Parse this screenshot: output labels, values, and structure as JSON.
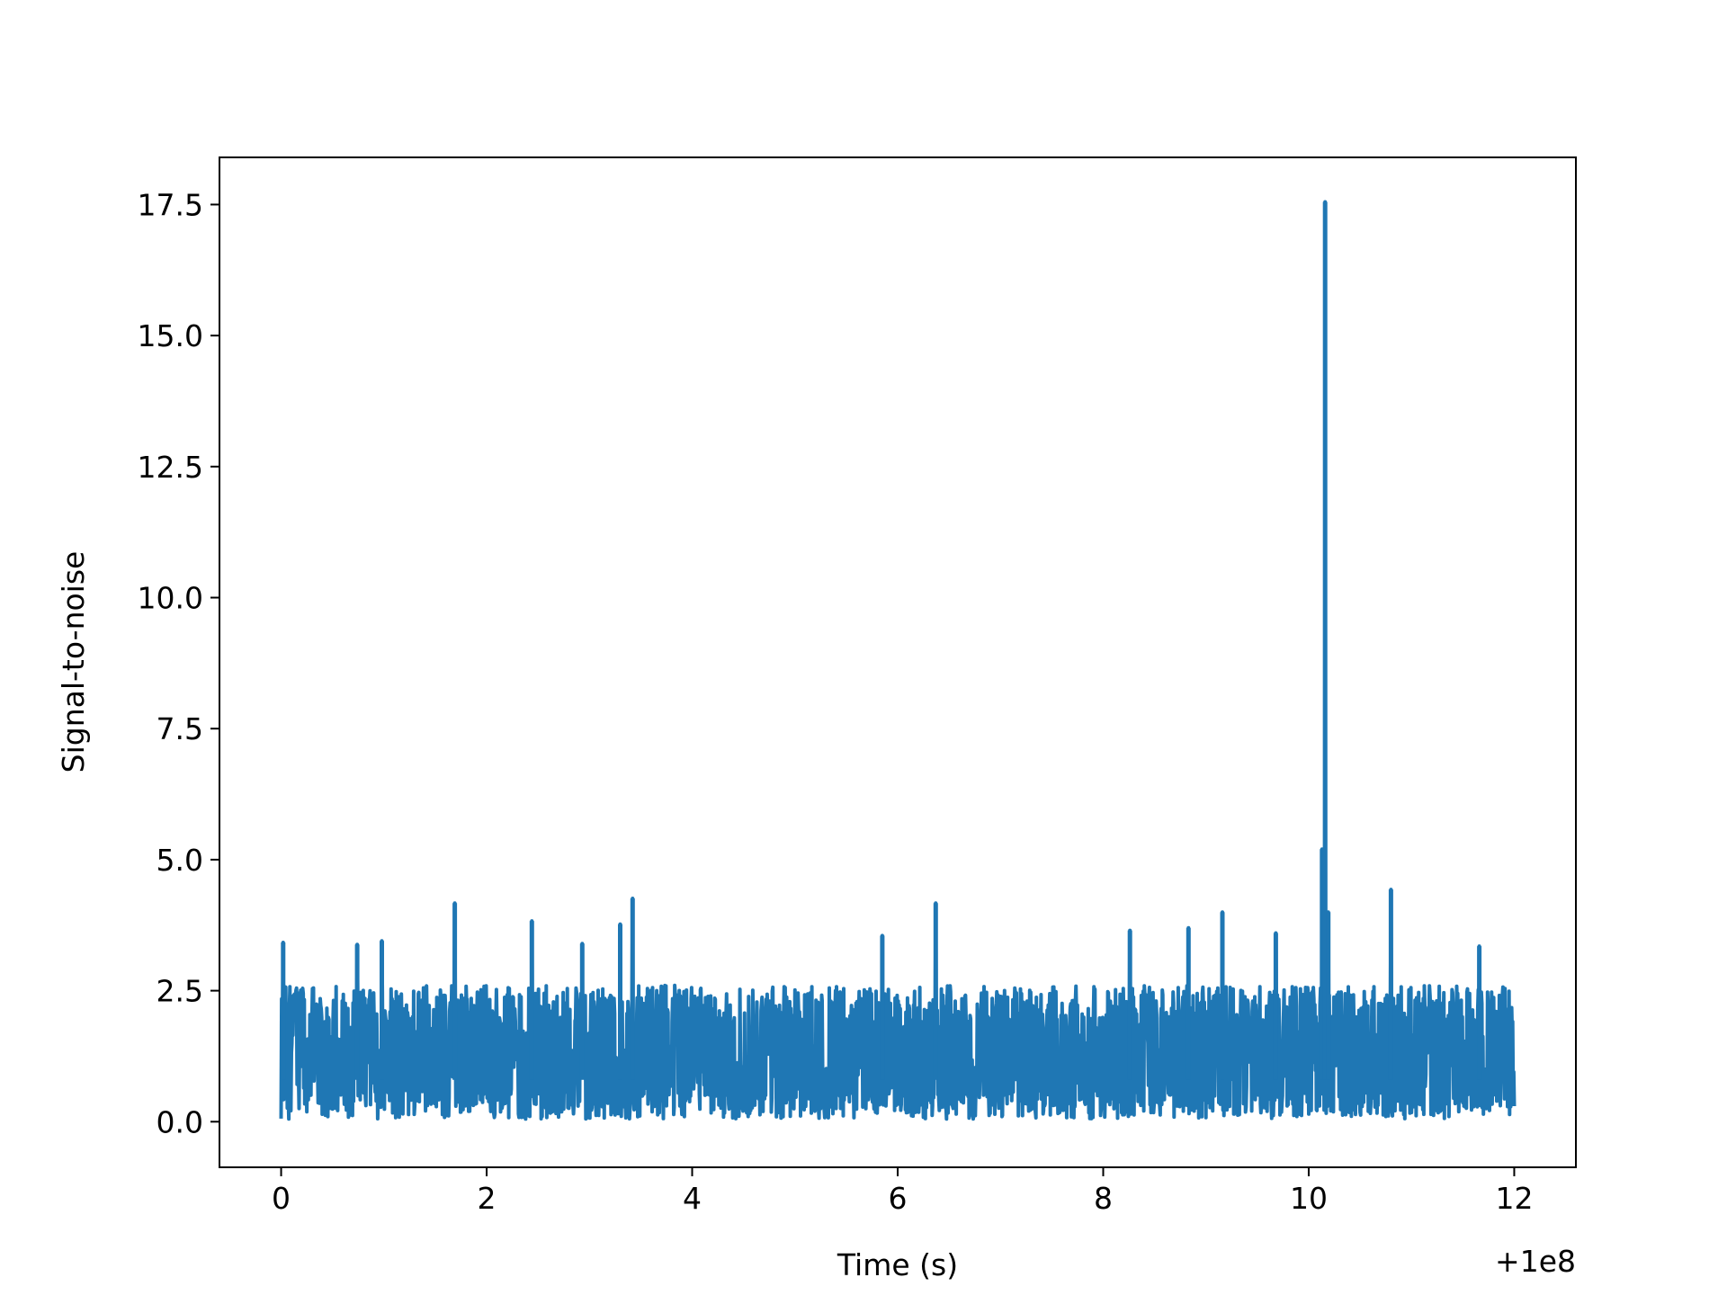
{
  "chart_data": {
    "type": "line",
    "title": "",
    "xlabel": "Time (s)",
    "ylabel": "Signal-to-noise",
    "x_offset_label": "+1e8",
    "xlim": [
      -0.6,
      12.6
    ],
    "ylim": [
      -0.87,
      18.4
    ],
    "xticks": [
      0,
      2,
      4,
      6,
      8,
      10,
      12
    ],
    "xtick_labels": [
      "0",
      "2",
      "4",
      "6",
      "8",
      "10",
      "12"
    ],
    "yticks": [
      0.0,
      2.5,
      5.0,
      7.5,
      10.0,
      12.5,
      15.0,
      17.5
    ],
    "ytick_labels": [
      "0.0",
      "2.5",
      "5.0",
      "7.5",
      "10.0",
      "12.5",
      "15.0",
      "17.5"
    ],
    "grid": false,
    "legend": "none",
    "line_color": "#1f77b4",
    "x_range": [
      0,
      12
    ],
    "noise_floor": 0.05,
    "noise_ceiling": 2.6,
    "spikes": [
      {
        "x": 0.02,
        "y": 3.42
      },
      {
        "x": 0.74,
        "y": 3.38
      },
      {
        "x": 0.98,
        "y": 3.45
      },
      {
        "x": 1.69,
        "y": 4.17
      },
      {
        "x": 2.44,
        "y": 3.83
      },
      {
        "x": 2.93,
        "y": 3.4
      },
      {
        "x": 3.3,
        "y": 3.77
      },
      {
        "x": 3.42,
        "y": 4.26
      },
      {
        "x": 5.85,
        "y": 3.55
      },
      {
        "x": 6.37,
        "y": 4.17
      },
      {
        "x": 8.26,
        "y": 3.65
      },
      {
        "x": 8.83,
        "y": 3.7
      },
      {
        "x": 9.16,
        "y": 4.0
      },
      {
        "x": 9.68,
        "y": 3.6
      },
      {
        "x": 10.13,
        "y": 5.2
      },
      {
        "x": 10.16,
        "y": 17.55
      },
      {
        "x": 10.19,
        "y": 4.0
      },
      {
        "x": 10.8,
        "y": 4.43
      },
      {
        "x": 11.66,
        "y": 3.35
      }
    ]
  }
}
